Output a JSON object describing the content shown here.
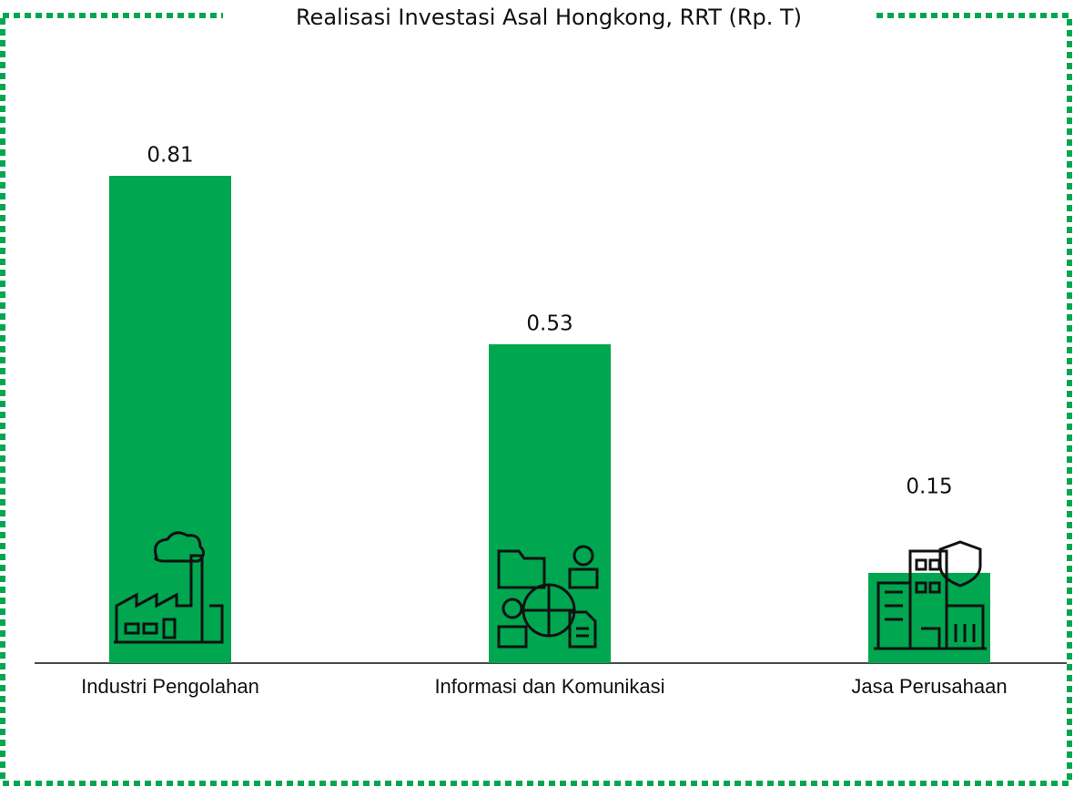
{
  "chart_data": {
    "type": "bar",
    "title": "Realisasi Investasi Asal Hongkong, RRT (Rp. T)",
    "categories": [
      "Industri Pengolahan",
      "Informasi dan Komunikasi",
      "Jasa Perusahaan"
    ],
    "values": [
      0.81,
      0.53,
      0.15
    ],
    "color": "#00a650"
  }
}
